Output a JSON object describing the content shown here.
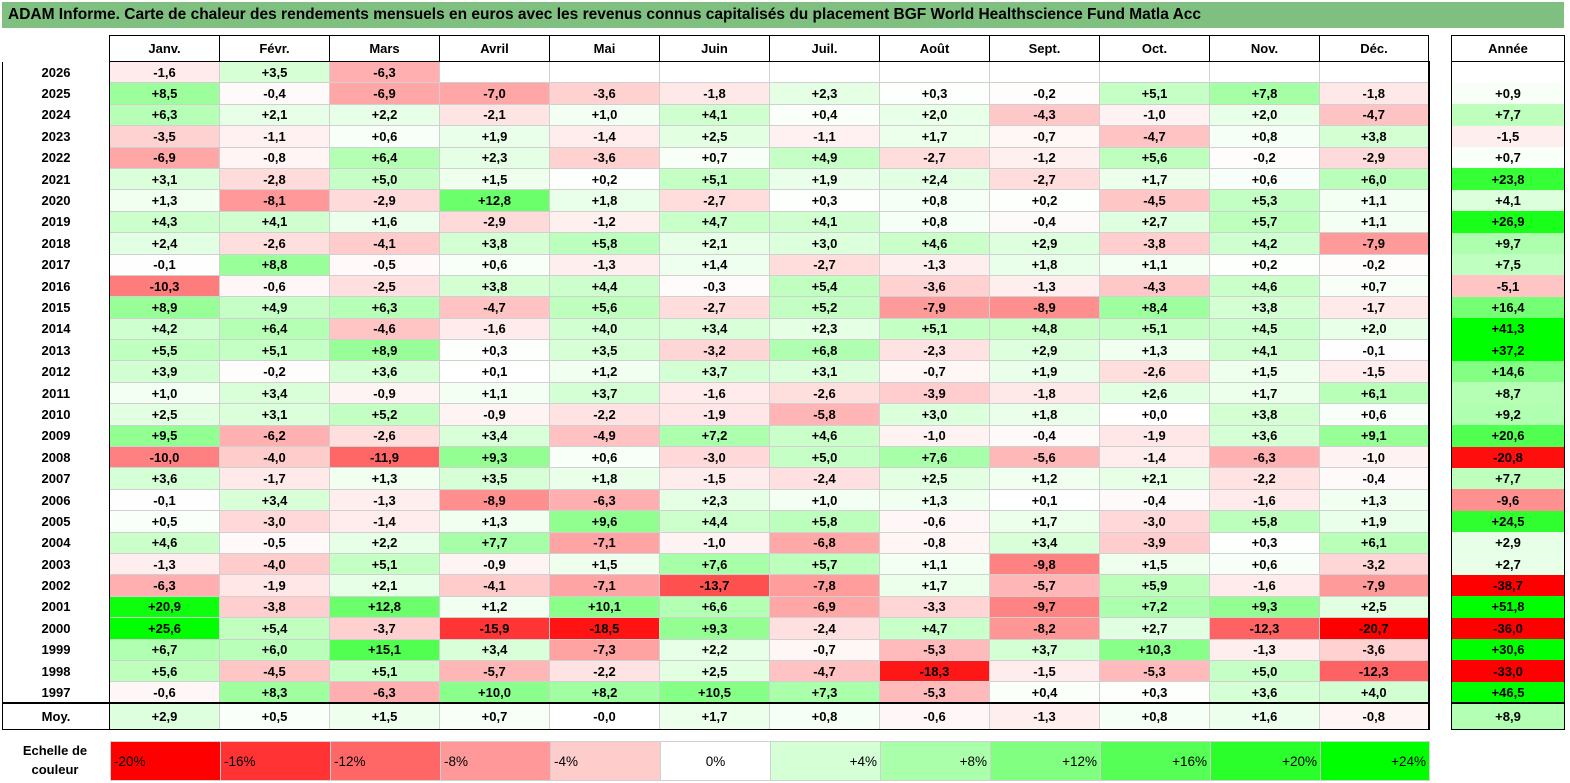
{
  "chart_data": {
    "type": "heatmap",
    "title": "ADAM Informe. Carte de chaleur des rendements mensuels en euros avec les revenus connus capitalisés du placement BGF World Healthscience Fund Matla Acc",
    "months": [
      "Janv.",
      "Févr.",
      "Mars",
      "Avril",
      "Mai",
      "Juin",
      "Juil.",
      "Août",
      "Sept.",
      "Oct.",
      "Nov.",
      "Déc."
    ],
    "annual_label": "Année",
    "rows": [
      {
        "year": "2026",
        "values": [
          "-1,6",
          "+3,5",
          "-6,3",
          "",
          "",
          "",
          "",
          "",
          "",
          "",
          "",
          ""
        ],
        "annual": ""
      },
      {
        "year": "2025",
        "values": [
          "+8,5",
          "-0,4",
          "-6,9",
          "-7,0",
          "-3,6",
          "-1,8",
          "+2,3",
          "+0,3",
          "-0,2",
          "+5,1",
          "+7,8",
          "-1,8"
        ],
        "annual": "+0,9"
      },
      {
        "year": "2024",
        "values": [
          "+6,3",
          "+2,1",
          "+2,2",
          "-2,1",
          "+1,0",
          "+4,1",
          "+0,4",
          "+2,0",
          "-4,3",
          "-1,0",
          "+2,0",
          "-4,7"
        ],
        "annual": "+7,7"
      },
      {
        "year": "2023",
        "values": [
          "-3,5",
          "-1,1",
          "+0,6",
          "+1,9",
          "-1,4",
          "+2,5",
          "-1,1",
          "+1,7",
          "-0,7",
          "-4,7",
          "+0,8",
          "+3,8"
        ],
        "annual": "-1,5"
      },
      {
        "year": "2022",
        "values": [
          "-6,9",
          "-0,8",
          "+6,4",
          "+2,3",
          "-3,6",
          "+0,7",
          "+4,9",
          "-2,7",
          "-1,2",
          "+5,6",
          "-0,2",
          "-2,9"
        ],
        "annual": "+0,7"
      },
      {
        "year": "2021",
        "values": [
          "+3,1",
          "-2,8",
          "+5,0",
          "+1,5",
          "+0,2",
          "+5,1",
          "+1,9",
          "+2,4",
          "-2,7",
          "+1,7",
          "+0,6",
          "+6,0"
        ],
        "annual": "+23,8"
      },
      {
        "year": "2020",
        "values": [
          "+1,3",
          "-8,1",
          "-2,9",
          "+12,8",
          "+1,8",
          "-2,7",
          "+0,3",
          "+0,8",
          "+0,2",
          "-4,5",
          "+5,3",
          "+1,1"
        ],
        "annual": "+4,1"
      },
      {
        "year": "2019",
        "values": [
          "+4,3",
          "+4,1",
          "+1,6",
          "-2,9",
          "-1,2",
          "+4,7",
          "+4,1",
          "+0,8",
          "-0,4",
          "+2,7",
          "+5,7",
          "+1,1"
        ],
        "annual": "+26,9"
      },
      {
        "year": "2018",
        "values": [
          "+2,4",
          "-2,6",
          "-4,1",
          "+3,8",
          "+5,8",
          "+2,1",
          "+3,0",
          "+4,6",
          "+2,9",
          "-3,8",
          "+4,2",
          "-7,9"
        ],
        "annual": "+9,7"
      },
      {
        "year": "2017",
        "values": [
          "-0,1",
          "+8,8",
          "-0,5",
          "+0,6",
          "-1,3",
          "+1,4",
          "-2,7",
          "-1,3",
          "+1,8",
          "+1,1",
          "+0,2",
          "-0,2"
        ],
        "annual": "+7,5"
      },
      {
        "year": "2016",
        "values": [
          "-10,3",
          "-0,6",
          "-2,5",
          "+3,8",
          "+4,4",
          "-0,3",
          "+5,4",
          "-3,6",
          "-1,3",
          "-4,3",
          "+4,6",
          "+0,7"
        ],
        "annual": "-5,1"
      },
      {
        "year": "2015",
        "values": [
          "+8,9",
          "+4,9",
          "+6,3",
          "-4,7",
          "+5,6",
          "-2,7",
          "+5,2",
          "-7,9",
          "-8,9",
          "+8,4",
          "+3,8",
          "-1,7"
        ],
        "annual": "+16,4"
      },
      {
        "year": "2014",
        "values": [
          "+4,2",
          "+6,4",
          "-4,6",
          "-1,6",
          "+4,0",
          "+3,4",
          "+2,3",
          "+5,1",
          "+4,8",
          "+5,1",
          "+4,5",
          "+2,0"
        ],
        "annual": "+41,3"
      },
      {
        "year": "2013",
        "values": [
          "+5,5",
          "+5,1",
          "+8,9",
          "+0,3",
          "+3,5",
          "-3,2",
          "+6,8",
          "-2,3",
          "+2,9",
          "+1,3",
          "+4,1",
          "-0,1"
        ],
        "annual": "+37,2"
      },
      {
        "year": "2012",
        "values": [
          "+3,9",
          "-0,2",
          "+3,6",
          "+0,1",
          "+1,2",
          "+3,7",
          "+3,1",
          "-0,7",
          "+1,9",
          "-2,6",
          "+1,5",
          "-1,5"
        ],
        "annual": "+14,6"
      },
      {
        "year": "2011",
        "values": [
          "+1,0",
          "+3,4",
          "-0,9",
          "+1,1",
          "+3,7",
          "-1,6",
          "-2,6",
          "-3,9",
          "-1,8",
          "+2,6",
          "+1,7",
          "+6,1"
        ],
        "annual": "+8,7"
      },
      {
        "year": "2010",
        "values": [
          "+2,5",
          "+3,1",
          "+5,2",
          "-0,9",
          "-2,2",
          "-1,9",
          "-5,8",
          "+3,0",
          "+1,8",
          "+0,0",
          "+3,8",
          "+0,6"
        ],
        "annual": "+9,2"
      },
      {
        "year": "2009",
        "values": [
          "+9,5",
          "-6,2",
          "-2,6",
          "+3,4",
          "-4,9",
          "+7,2",
          "+4,6",
          "-1,0",
          "-0,4",
          "-1,9",
          "+3,6",
          "+9,1"
        ],
        "annual": "+20,6"
      },
      {
        "year": "2008",
        "values": [
          "-10,0",
          "-4,0",
          "-11,9",
          "+9,3",
          "+0,6",
          "-3,0",
          "+5,0",
          "+7,6",
          "-5,6",
          "-1,4",
          "-6,3",
          "-1,0"
        ],
        "annual": "-20,8"
      },
      {
        "year": "2007",
        "values": [
          "+3,6",
          "-1,7",
          "+1,3",
          "+3,5",
          "+1,8",
          "-1,5",
          "-2,4",
          "+2,5",
          "+1,2",
          "+2,1",
          "-2,2",
          "-0,4"
        ],
        "annual": "+7,7"
      },
      {
        "year": "2006",
        "values": [
          "-0,1",
          "+3,4",
          "-1,3",
          "-8,9",
          "-6,3",
          "+2,3",
          "+1,0",
          "+1,3",
          "+0,1",
          "-0,4",
          "-1,6",
          "+1,3"
        ],
        "annual": "-9,6"
      },
      {
        "year": "2005",
        "values": [
          "+0,5",
          "-3,0",
          "-1,4",
          "+1,3",
          "+9,6",
          "+4,4",
          "+5,8",
          "-0,6",
          "+1,7",
          "-3,0",
          "+5,8",
          "+1,9"
        ],
        "annual": "+24,5"
      },
      {
        "year": "2004",
        "values": [
          "+4,6",
          "-0,5",
          "+2,2",
          "+7,7",
          "-7,1",
          "-1,0",
          "-6,8",
          "-0,8",
          "+3,4",
          "-3,9",
          "+0,3",
          "+6,1"
        ],
        "annual": "+2,9"
      },
      {
        "year": "2003",
        "values": [
          "-1,3",
          "-4,0",
          "+5,1",
          "-0,9",
          "+1,5",
          "+7,6",
          "+5,7",
          "+1,1",
          "-9,8",
          "+1,5",
          "+0,6",
          "-3,2"
        ],
        "annual": "+2,7"
      },
      {
        "year": "2002",
        "values": [
          "-6,3",
          "-1,9",
          "+2,1",
          "-4,1",
          "-7,1",
          "-13,7",
          "-7,8",
          "+1,7",
          "-5,7",
          "+5,9",
          "-1,6",
          "-7,9"
        ],
        "annual": "-38,7"
      },
      {
        "year": "2001",
        "values": [
          "+20,9",
          "-3,8",
          "+12,8",
          "+1,2",
          "+10,1",
          "+6,6",
          "-6,9",
          "-3,3",
          "-9,7",
          "+7,2",
          "+9,3",
          "+2,5"
        ],
        "annual": "+51,8"
      },
      {
        "year": "2000",
        "values": [
          "+25,6",
          "+5,4",
          "-3,7",
          "-15,9",
          "-18,5",
          "+9,3",
          "-2,4",
          "+4,7",
          "-8,2",
          "+2,7",
          "-12,3",
          "-20,7"
        ],
        "annual": "-36,0"
      },
      {
        "year": "1999",
        "values": [
          "+6,7",
          "+6,0",
          "+15,1",
          "+3,4",
          "-7,3",
          "+2,2",
          "-0,7",
          "-5,3",
          "+3,7",
          "+10,3",
          "-1,3",
          "-3,6"
        ],
        "annual": "+30,6"
      },
      {
        "year": "1998",
        "values": [
          "+5,6",
          "-4,5",
          "+5,1",
          "-5,7",
          "-2,2",
          "+2,5",
          "-4,7",
          "-18,3",
          "-1,5",
          "-5,3",
          "+5,0",
          "-12,3"
        ],
        "annual": "-33,0"
      },
      {
        "year": "1997",
        "values": [
          "-0,6",
          "+8,3",
          "-6,3",
          "+10,0",
          "+8,2",
          "+10,5",
          "+7,3",
          "-5,3",
          "+0,4",
          "+0,3",
          "+3,6",
          "+4,0"
        ],
        "annual": "+46,5"
      }
    ],
    "average": {
      "label": "Moy.",
      "values": [
        "+2,9",
        "+0,5",
        "+1,5",
        "+0,7",
        "-0,0",
        "+1,7",
        "+0,8",
        "-0,6",
        "-1,3",
        "+0,8",
        "+1,6",
        "-0,8"
      ],
      "annual": "+8,9"
    },
    "scale": {
      "label_line1": "Echelle de",
      "label_line2": "couleur",
      "steps": [
        "-20%",
        "-16%",
        "-12%",
        "-8%",
        "-4%",
        "0%",
        "+4%",
        "+8%",
        "+12%",
        "+16%",
        "+20%",
        "+24%"
      ]
    },
    "colors": {
      "title_bg": "#7fbf7f",
      "negative": "#ff0000",
      "positive": "#00ff00",
      "neutral": "#ffffff"
    }
  }
}
